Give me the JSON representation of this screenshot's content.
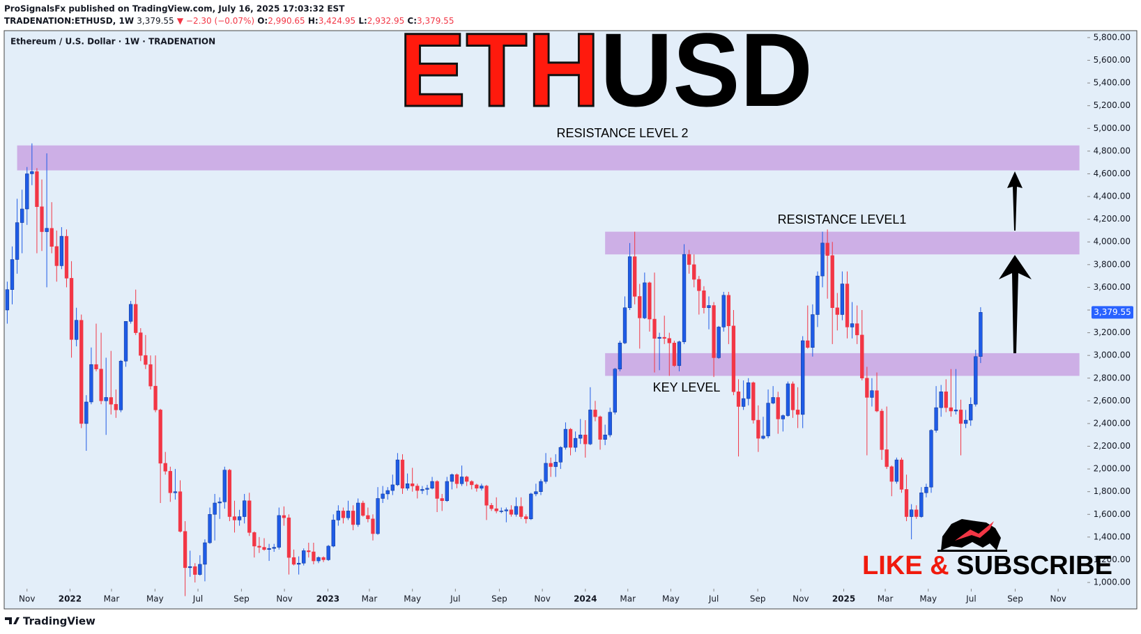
{
  "header": {
    "author": "ProSignalsFx published on TradingView.com, July 16, 2025 17:03:32 EST",
    "symbol": "TRADENATION:ETHUSD, 1W",
    "last": "3,379.55",
    "change": "▼ −2.30 (−0.07%)",
    "o_label": "O:",
    "o": "2,990.65",
    "h_label": "H:",
    "h": "3,424.95",
    "l_label": "L:",
    "l": "2,932.95",
    "c_label": "C:",
    "c": "3,379.55"
  },
  "chart_data": {
    "type": "candlestick",
    "title_left": "ETH",
    "title_right": "USD",
    "subtitle": "Ethereum / U.S. Dollar · 1W · TRADENATION",
    "up_color": "#1e5be6",
    "down_color": "#f23645",
    "zone_color": "#c9a3e3",
    "xlim": [
      -0.48,
      218.6
    ],
    "ylim": [
      945,
      5861
    ],
    "yticks": [
      {
        "value": 1000,
        "label": "1,000.00"
      },
      {
        "value": 1200,
        "label": "1,200.00"
      },
      {
        "value": 1400,
        "label": "1,400.00"
      },
      {
        "value": 1600,
        "label": "1,600.00"
      },
      {
        "value": 1800,
        "label": "1,800.00"
      },
      {
        "value": 2000,
        "label": "2,000.00"
      },
      {
        "value": 2200,
        "label": "2,200.00"
      },
      {
        "value": 2400,
        "label": "2,400.00"
      },
      {
        "value": 2600,
        "label": "2,600.00"
      },
      {
        "value": 2800,
        "label": "2,800.00"
      },
      {
        "value": 3000,
        "label": "3,000.00"
      },
      {
        "value": 3200,
        "label": "3,200.00"
      },
      {
        "value": 3400,
        "label": "3,400.00"
      },
      {
        "value": 3600,
        "label": "3,600.00"
      },
      {
        "value": 3800,
        "label": "3,800.00"
      },
      {
        "value": 4000,
        "label": "4,000.00"
      },
      {
        "value": 4200,
        "label": "4,200.00"
      },
      {
        "value": 4400,
        "label": "4,400.00"
      },
      {
        "value": 4600,
        "label": "4,600.00"
      },
      {
        "value": 4800,
        "label": "4,800.00"
      },
      {
        "value": 5000,
        "label": "5,000.00"
      },
      {
        "value": 5200,
        "label": "5,200.00"
      },
      {
        "value": 5400,
        "label": "5,400.00"
      },
      {
        "value": 5600,
        "label": "5,600.00"
      },
      {
        "value": 5800,
        "label": "5,800.00"
      }
    ],
    "xticks": [
      {
        "value": 4,
        "label": "Nov"
      },
      {
        "value": 12.7,
        "label": "2022"
      },
      {
        "value": 21.1,
        "label": "Mar"
      },
      {
        "value": 29.9,
        "label": "May"
      },
      {
        "value": 38.6,
        "label": "Jul"
      },
      {
        "value": 47.4,
        "label": "Sep"
      },
      {
        "value": 56.1,
        "label": "Nov"
      },
      {
        "value": 64.9,
        "label": "2023"
      },
      {
        "value": 73.3,
        "label": "Mar"
      },
      {
        "value": 82,
        "label": "May"
      },
      {
        "value": 90.7,
        "label": "Jul"
      },
      {
        "value": 99.6,
        "label": "Sep"
      },
      {
        "value": 108.3,
        "label": "Nov"
      },
      {
        "value": 117,
        "label": "2024"
      },
      {
        "value": 125.6,
        "label": "Mar"
      },
      {
        "value": 134.3,
        "label": "May"
      },
      {
        "value": 143,
        "label": "Jul"
      },
      {
        "value": 151.9,
        "label": "Sep"
      },
      {
        "value": 160.6,
        "label": "Nov"
      },
      {
        "value": 169.3,
        "label": "2025"
      },
      {
        "value": 177.7,
        "label": "Mar"
      },
      {
        "value": 186.4,
        "label": "May"
      },
      {
        "value": 195.1,
        "label": "Jul"
      },
      {
        "value": 204,
        "label": "Sep"
      },
      {
        "value": 212.7,
        "label": "Nov"
      }
    ],
    "zones": [
      {
        "label": "RESISTANCE LEVEL 2",
        "low": 4630,
        "high": 4850,
        "from": 2,
        "to": 217
      },
      {
        "label": "RESISTANCE LEVEL1",
        "low": 3890,
        "high": 4090,
        "from": 121,
        "to": 217
      },
      {
        "label": "KEY LEVEL",
        "low": 2820,
        "high": 3020,
        "from": 121,
        "to": 217
      }
    ],
    "last_price": {
      "value": 3379.55,
      "label": "3,379.55"
    },
    "ohlc": [
      [
        3400,
        3650,
        3280,
        3580
      ],
      [
        3580,
        3960,
        3450,
        3845
      ],
      [
        3845,
        4380,
        3720,
        4170
      ],
      [
        4170,
        4460,
        3900,
        4290
      ],
      [
        4290,
        4660,
        4150,
        4600
      ],
      [
        4600,
        4868,
        4500,
        4620
      ],
      [
        4620,
        4650,
        3900,
        4310
      ],
      [
        4310,
        4550,
        3920,
        4090
      ],
      [
        4090,
        4780,
        3600,
        4120
      ],
      [
        4120,
        4350,
        3900,
        3960
      ],
      [
        3960,
        4100,
        3650,
        3790
      ],
      [
        3790,
        4130,
        3760,
        4050
      ],
      [
        4050,
        4110,
        3600,
        3680
      ],
      [
        3680,
        3830,
        2980,
        3140
      ],
      [
        3140,
        3420,
        3080,
        3310
      ],
      [
        3310,
        3360,
        2360,
        2400
      ],
      [
        2400,
        2650,
        2160,
        2590
      ],
      [
        2590,
        3070,
        2570,
        2920
      ],
      [
        2920,
        3280,
        2860,
        2880
      ],
      [
        2880,
        3200,
        2570,
        2600
      ],
      [
        2600,
        2980,
        2300,
        2630
      ],
      [
        2630,
        3040,
        2480,
        2570
      ],
      [
        2570,
        2700,
        2450,
        2520
      ],
      [
        2520,
        2960,
        2500,
        2950
      ],
      [
        2950,
        3300,
        2900,
        3300
      ],
      [
        3300,
        3480,
        3280,
        3450
      ],
      [
        3450,
        3580,
        3180,
        3200
      ],
      [
        3200,
        3240,
        2950,
        3000
      ],
      [
        3000,
        3180,
        2880,
        2920
      ],
      [
        2920,
        3000,
        2700,
        2730
      ],
      [
        2730,
        3000,
        2500,
        2520
      ],
      [
        2520,
        2530,
        1700,
        2050
      ],
      [
        2050,
        2150,
        1950,
        1980
      ],
      [
        1980,
        2020,
        1710,
        1790
      ],
      [
        1790,
        2000,
        1730,
        1800
      ],
      [
        1800,
        1900,
        1440,
        1450
      ],
      [
        1450,
        1540,
        880,
        1130
      ],
      [
        1130,
        1280,
        1050,
        1140
      ],
      [
        1140,
        1170,
        1000,
        1070
      ],
      [
        1070,
        1240,
        1060,
        1160
      ],
      [
        1160,
        1380,
        1010,
        1350
      ],
      [
        1350,
        1660,
        1340,
        1600
      ],
      [
        1600,
        1780,
        1370,
        1700
      ],
      [
        1700,
        1750,
        1560,
        1710
      ],
      [
        1710,
        2020,
        1650,
        1990
      ],
      [
        1990,
        2000,
        1540,
        1580
      ],
      [
        1580,
        1720,
        1440,
        1550
      ],
      [
        1550,
        1640,
        1500,
        1580
      ],
      [
        1580,
        1780,
        1520,
        1720
      ],
      [
        1720,
        1790,
        1410,
        1440
      ],
      [
        1440,
        1450,
        1220,
        1320
      ],
      [
        1320,
        1400,
        1260,
        1310
      ],
      [
        1310,
        1390,
        1280,
        1290
      ],
      [
        1290,
        1340,
        1190,
        1300
      ],
      [
        1300,
        1340,
        1270,
        1310
      ],
      [
        1310,
        1660,
        1290,
        1590
      ],
      [
        1590,
        1670,
        1500,
        1570
      ],
      [
        1570,
        1600,
        1070,
        1220
      ],
      [
        1220,
        1290,
        1150,
        1160
      ],
      [
        1160,
        1230,
        1070,
        1170
      ],
      [
        1170,
        1300,
        1150,
        1280
      ],
      [
        1280,
        1350,
        1220,
        1270
      ],
      [
        1270,
        1350,
        1160,
        1190
      ],
      [
        1190,
        1230,
        1170,
        1220
      ],
      [
        1220,
        1230,
        1180,
        1200
      ],
      [
        1200,
        1330,
        1190,
        1320
      ],
      [
        1320,
        1600,
        1310,
        1550
      ],
      [
        1550,
        1680,
        1500,
        1630
      ],
      [
        1630,
        1660,
        1520,
        1570
      ],
      [
        1570,
        1720,
        1550,
        1630
      ],
      [
        1630,
        1680,
        1460,
        1510
      ],
      [
        1510,
        1740,
        1490,
        1700
      ],
      [
        1700,
        1720,
        1580,
        1590
      ],
      [
        1590,
        1660,
        1530,
        1560
      ],
      [
        1560,
        1600,
        1370,
        1430
      ],
      [
        1430,
        1840,
        1420,
        1740
      ],
      [
        1740,
        1850,
        1700,
        1780
      ],
      [
        1780,
        1840,
        1730,
        1810
      ],
      [
        1810,
        1950,
        1770,
        1860
      ],
      [
        1860,
        2140,
        1850,
        2080
      ],
      [
        2080,
        2130,
        1780,
        1830
      ],
      [
        1830,
        1960,
        1810,
        1870
      ],
      [
        1870,
        2010,
        1800,
        1850
      ],
      [
        1850,
        1870,
        1740,
        1810
      ],
      [
        1810,
        1850,
        1780,
        1820
      ],
      [
        1820,
        1860,
        1770,
        1830
      ],
      [
        1830,
        1930,
        1820,
        1890
      ],
      [
        1890,
        1900,
        1620,
        1740
      ],
      [
        1740,
        1780,
        1630,
        1720
      ],
      [
        1720,
        1930,
        1710,
        1890
      ],
      [
        1890,
        1960,
        1820,
        1950
      ],
      [
        1950,
        1960,
        1830,
        1870
      ],
      [
        1870,
        2030,
        1850,
        1930
      ],
      [
        1930,
        1940,
        1850,
        1890
      ],
      [
        1890,
        1900,
        1820,
        1860
      ],
      [
        1860,
        1870,
        1800,
        1830
      ],
      [
        1830,
        1870,
        1810,
        1850
      ],
      [
        1850,
        1860,
        1550,
        1680
      ],
      [
        1680,
        1700,
        1630,
        1650
      ],
      [
        1650,
        1750,
        1610,
        1630
      ],
      [
        1630,
        1660,
        1610,
        1630
      ],
      [
        1630,
        1660,
        1530,
        1640
      ],
      [
        1640,
        1680,
        1580,
        1600
      ],
      [
        1600,
        1750,
        1580,
        1670
      ],
      [
        1670,
        1750,
        1560,
        1580
      ],
      [
        1580,
        1600,
        1520,
        1560
      ],
      [
        1560,
        1790,
        1550,
        1780
      ],
      [
        1780,
        1870,
        1760,
        1800
      ],
      [
        1800,
        1910,
        1770,
        1890
      ],
      [
        1890,
        2140,
        1870,
        2050
      ],
      [
        2050,
        2100,
        1930,
        2020
      ],
      [
        2020,
        2130,
        1930,
        2060
      ],
      [
        2060,
        2200,
        2000,
        2190
      ],
      [
        2190,
        2410,
        2170,
        2350
      ],
      [
        2350,
        2360,
        2120,
        2190
      ],
      [
        2190,
        2330,
        2150,
        2270
      ],
      [
        2270,
        2440,
        2220,
        2300
      ],
      [
        2300,
        2430,
        2100,
        2220
      ],
      [
        2220,
        2720,
        2210,
        2520
      ],
      [
        2520,
        2600,
        2420,
        2460
      ],
      [
        2460,
        2470,
        2170,
        2260
      ],
      [
        2260,
        2390,
        2210,
        2300
      ],
      [
        2300,
        2540,
        2280,
        2500
      ],
      [
        2500,
        2890,
        2480,
        2880
      ],
      [
        2880,
        3130,
        2860,
        3110
      ],
      [
        3110,
        3520,
        3100,
        3420
      ],
      [
        3420,
        3990,
        3400,
        3870
      ],
      [
        3870,
        4090,
        3450,
        3520
      ],
      [
        3520,
        3630,
        3060,
        3330
      ],
      [
        3330,
        3730,
        3320,
        3640
      ],
      [
        3640,
        3650,
        3210,
        3320
      ],
      [
        3320,
        3730,
        2850,
        3150
      ],
      [
        3150,
        3200,
        2870,
        3160
      ],
      [
        3160,
        3350,
        3100,
        3150
      ],
      [
        3150,
        3200,
        2820,
        3110
      ],
      [
        3110,
        3130,
        2900,
        2910
      ],
      [
        2910,
        3130,
        2860,
        3120
      ],
      [
        3120,
        3980,
        3100,
        3890
      ],
      [
        3890,
        3930,
        3720,
        3800
      ],
      [
        3800,
        3890,
        3600,
        3670
      ],
      [
        3670,
        3700,
        3360,
        3570
      ],
      [
        3570,
        3610,
        3370,
        3420
      ],
      [
        3420,
        3520,
        3230,
        3440
      ],
      [
        3440,
        3470,
        2810,
        2980
      ],
      [
        2980,
        3260,
        2970,
        3250
      ],
      [
        3250,
        3560,
        3210,
        3530
      ],
      [
        3530,
        3560,
        3100,
        3260
      ],
      [
        3260,
        3400,
        2650,
        2680
      ],
      [
        2680,
        2790,
        2110,
        2550
      ],
      [
        2550,
        2780,
        2520,
        2620
      ],
      [
        2620,
        2800,
        2560,
        2760
      ],
      [
        2760,
        2770,
        2400,
        2430
      ],
      [
        2430,
        2560,
        2150,
        2270
      ],
      [
        2270,
        2460,
        2260,
        2290
      ],
      [
        2290,
        2700,
        2270,
        2580
      ],
      [
        2580,
        2730,
        2570,
        2630
      ],
      [
        2630,
        2680,
        2310,
        2440
      ],
      [
        2440,
        2480,
        2330,
        2470
      ],
      [
        2470,
        2770,
        2460,
        2750
      ],
      [
        2750,
        2770,
        2450,
        2520
      ],
      [
        2520,
        2720,
        2360,
        2480
      ],
      [
        2480,
        3170,
        2360,
        3130
      ],
      [
        3130,
        3440,
        3060,
        3070
      ],
      [
        3070,
        3450,
        2990,
        3360
      ],
      [
        3360,
        3740,
        3250,
        3700
      ],
      [
        3700,
        4090,
        3600,
        3990
      ],
      [
        3990,
        4110,
        3500,
        3880
      ],
      [
        3880,
        4000,
        3100,
        3420
      ],
      [
        3420,
        3550,
        3220,
        3360
      ],
      [
        3360,
        3740,
        3310,
        3630
      ],
      [
        3630,
        3740,
        3150,
        3250
      ],
      [
        3250,
        3470,
        3150,
        3280
      ],
      [
        3280,
        3440,
        3100,
        3180
      ],
      [
        3180,
        3400,
        2780,
        2800
      ],
      [
        2800,
        2900,
        2120,
        2630
      ],
      [
        2630,
        2800,
        2550,
        2690
      ],
      [
        2690,
        2850,
        2500,
        2510
      ],
      [
        2510,
        2530,
        2080,
        2170
      ],
      [
        2170,
        2550,
        2000,
        2020
      ],
      [
        2020,
        2030,
        1760,
        1890
      ],
      [
        1890,
        2100,
        1870,
        2080
      ],
      [
        2080,
        2100,
        1790,
        1820
      ],
      [
        1820,
        1950,
        1540,
        1580
      ],
      [
        1580,
        1690,
        1380,
        1640
      ],
      [
        1640,
        1680,
        1560,
        1580
      ],
      [
        1580,
        1840,
        1570,
        1790
      ],
      [
        1790,
        1870,
        1750,
        1840
      ],
      [
        1840,
        2350,
        1790,
        2340
      ],
      [
        2340,
        2730,
        2320,
        2540
      ],
      [
        2540,
        2740,
        2460,
        2680
      ],
      [
        2680,
        2790,
        2500,
        2540
      ],
      [
        2540,
        2880,
        2460,
        2510
      ],
      [
        2510,
        2880,
        2480,
        2520
      ],
      [
        2520,
        2610,
        2120,
        2400
      ],
      [
        2400,
        2520,
        2360,
        2430
      ],
      [
        2430,
        2630,
        2380,
        2570
      ],
      [
        2570,
        3050,
        2550,
        2990
      ],
      [
        2990.65,
        3424.95,
        2932.95,
        3379.55
      ]
    ]
  },
  "cta": {
    "like": "LIKE &",
    "subscribe": "SUBSCRIBE"
  },
  "footer": {
    "logo": "TradingView"
  }
}
